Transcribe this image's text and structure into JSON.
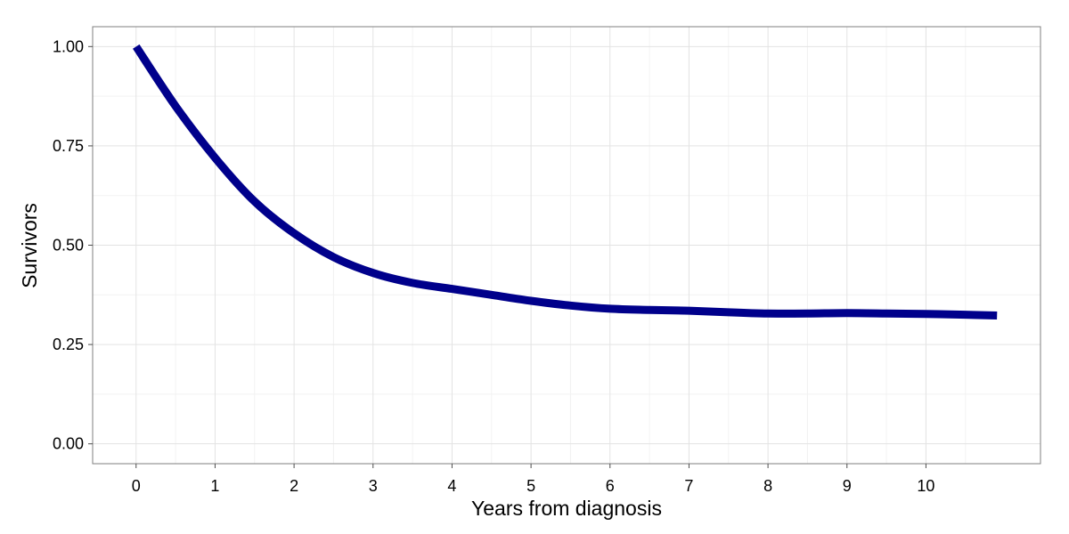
{
  "chart_data": {
    "type": "line",
    "title": "",
    "xlabel": "Years from diagnosis",
    "ylabel": "Survivors",
    "xlim": [
      -0.55,
      11.45
    ],
    "ylim": [
      -0.05,
      1.05
    ],
    "x_ticks": [
      0,
      1,
      2,
      3,
      4,
      5,
      6,
      7,
      8,
      9,
      10
    ],
    "x_tick_labels": [
      "0",
      "1",
      "2",
      "3",
      "4",
      "5",
      "6",
      "7",
      "8",
      "9",
      "10"
    ],
    "y_ticks": [
      0,
      0.25,
      0.5,
      0.75,
      1
    ],
    "y_tick_labels": [
      "0.00",
      "0.25",
      "0.50",
      "0.75",
      "1.00"
    ],
    "grid": true,
    "legend": "none",
    "series": [
      {
        "color": "#00008b",
        "x": [
          0,
          0.5,
          1,
          1.5,
          2,
          2.5,
          3,
          3.5,
          4,
          4.5,
          5,
          5.5,
          6,
          6.5,
          7,
          7.5,
          8,
          8.5,
          9,
          9.5,
          10,
          10.5,
          10.9
        ],
        "y": [
          1.0,
          0.85,
          0.72,
          0.61,
          0.53,
          0.47,
          0.43,
          0.405,
          0.39,
          0.375,
          0.36,
          0.348,
          0.34,
          0.337,
          0.335,
          0.331,
          0.328,
          0.328,
          0.329,
          0.328,
          0.327,
          0.325,
          0.323
        ]
      }
    ]
  }
}
